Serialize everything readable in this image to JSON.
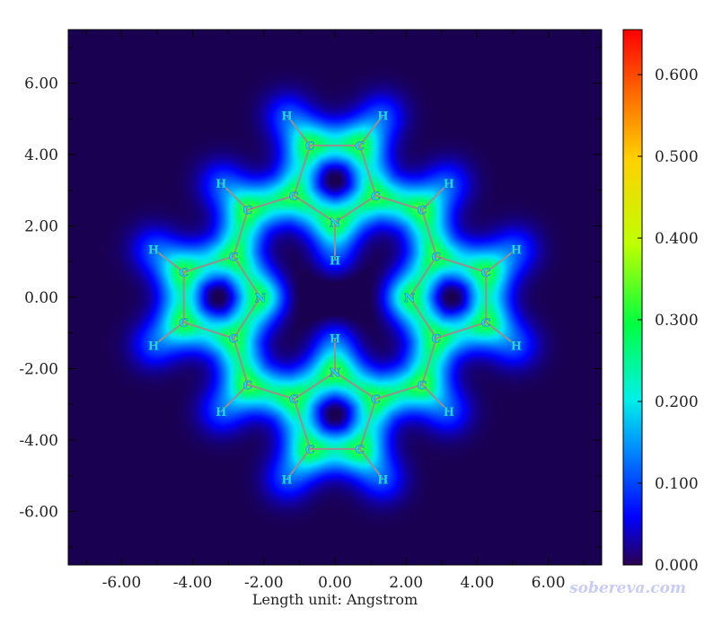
{
  "chart_data": {
    "type": "heatmap",
    "x_ticks": [
      "-6.00",
      "-4.00",
      "-2.00",
      "0.00",
      "2.00",
      "4.00",
      "6.00"
    ],
    "y_ticks": [
      "6.00",
      "4.00",
      "2.00",
      "0.00",
      "-2.00",
      "-4.00",
      "-6.00"
    ],
    "x_tick_values": [
      -6,
      -4,
      -2,
      0,
      2,
      4,
      6
    ],
    "y_tick_values": [
      6,
      4,
      2,
      0,
      -2,
      -4,
      -6
    ],
    "xlim": [
      -7.5,
      7.5
    ],
    "ylim": [
      -7.5,
      7.5
    ],
    "xlabel": "Length unit: Angstrom",
    "colorbar": {
      "ticks": [
        "0.000",
        "0.100",
        "0.200",
        "0.300",
        "0.400",
        "0.500",
        "0.600"
      ],
      "tick_values": [
        0,
        0.1,
        0.2,
        0.3,
        0.4,
        0.5,
        0.6
      ],
      "range": [
        0,
        0.655
      ]
    },
    "atoms": [
      {
        "el": "N",
        "x": 0.0,
        "y": 2.1
      },
      {
        "el": "N",
        "x": 0.0,
        "y": -2.1
      },
      {
        "el": "N",
        "x": -2.1,
        "y": 0.0
      },
      {
        "el": "N",
        "x": 2.1,
        "y": 0.0
      },
      {
        "el": "H",
        "x": 0.0,
        "y": 1.05
      },
      {
        "el": "H",
        "x": 0.0,
        "y": -1.15
      },
      {
        "el": "C",
        "x": -1.15,
        "y": 2.85
      },
      {
        "el": "C",
        "x": 1.15,
        "y": 2.85
      },
      {
        "el": "C",
        "x": -0.7,
        "y": 4.25
      },
      {
        "el": "C",
        "x": 0.7,
        "y": 4.25
      },
      {
        "el": "H",
        "x": -1.35,
        "y": 5.1
      },
      {
        "el": "H",
        "x": 1.35,
        "y": 5.1
      },
      {
        "el": "C",
        "x": -1.15,
        "y": -2.85
      },
      {
        "el": "C",
        "x": 1.15,
        "y": -2.85
      },
      {
        "el": "C",
        "x": -0.7,
        "y": -4.25
      },
      {
        "el": "C",
        "x": 0.7,
        "y": -4.25
      },
      {
        "el": "H",
        "x": -1.35,
        "y": -5.1
      },
      {
        "el": "H",
        "x": 1.35,
        "y": -5.1
      },
      {
        "el": "C",
        "x": -2.85,
        "y": 1.15
      },
      {
        "el": "C",
        "x": -2.85,
        "y": -1.15
      },
      {
        "el": "C",
        "x": -4.25,
        "y": 0.7
      },
      {
        "el": "C",
        "x": -4.25,
        "y": -0.7
      },
      {
        "el": "H",
        "x": -5.1,
        "y": 1.35
      },
      {
        "el": "H",
        "x": -5.1,
        "y": -1.35
      },
      {
        "el": "C",
        "x": 2.85,
        "y": 1.15
      },
      {
        "el": "C",
        "x": 2.85,
        "y": -1.15
      },
      {
        "el": "C",
        "x": 4.25,
        "y": 0.7
      },
      {
        "el": "C",
        "x": 4.25,
        "y": -0.7
      },
      {
        "el": "H",
        "x": 5.1,
        "y": 1.35
      },
      {
        "el": "H",
        "x": 5.1,
        "y": -1.35
      },
      {
        "el": "C",
        "x": -2.45,
        "y": 2.45
      },
      {
        "el": "C",
        "x": 2.45,
        "y": 2.45
      },
      {
        "el": "C",
        "x": -2.45,
        "y": -2.45
      },
      {
        "el": "C",
        "x": 2.45,
        "y": -2.45
      },
      {
        "el": "H",
        "x": -3.2,
        "y": 3.2
      },
      {
        "el": "H",
        "x": 3.2,
        "y": 3.2
      },
      {
        "el": "H",
        "x": -3.2,
        "y": -3.2
      },
      {
        "el": "H",
        "x": 3.2,
        "y": -3.2
      }
    ],
    "bonds": [
      [
        0,
        6
      ],
      [
        0,
        7
      ],
      [
        0,
        4
      ],
      [
        6,
        8
      ],
      [
        7,
        9
      ],
      [
        8,
        9
      ],
      [
        8,
        10
      ],
      [
        9,
        11
      ],
      [
        1,
        12
      ],
      [
        1,
        13
      ],
      [
        1,
        5
      ],
      [
        12,
        14
      ],
      [
        13,
        15
      ],
      [
        14,
        15
      ],
      [
        14,
        16
      ],
      [
        15,
        17
      ],
      [
        2,
        18
      ],
      [
        2,
        19
      ],
      [
        18,
        20
      ],
      [
        19,
        21
      ],
      [
        20,
        21
      ],
      [
        20,
        22
      ],
      [
        21,
        23
      ],
      [
        3,
        24
      ],
      [
        3,
        25
      ],
      [
        24,
        26
      ],
      [
        25,
        27
      ],
      [
        26,
        27
      ],
      [
        26,
        28
      ],
      [
        27,
        29
      ],
      [
        30,
        6
      ],
      [
        30,
        18
      ],
      [
        30,
        34
      ],
      [
        31,
        7
      ],
      [
        31,
        24
      ],
      [
        31,
        35
      ],
      [
        32,
        12
      ],
      [
        32,
        19
      ],
      [
        32,
        36
      ],
      [
        33,
        13
      ],
      [
        33,
        25
      ],
      [
        33,
        37
      ]
    ]
  },
  "watermark": "sobereva.com",
  "colors": {
    "background": "#ffffff",
    "plot_low": "#1a0050",
    "bond": "#9a8f8f",
    "atom_label": "#1fd3ff"
  }
}
